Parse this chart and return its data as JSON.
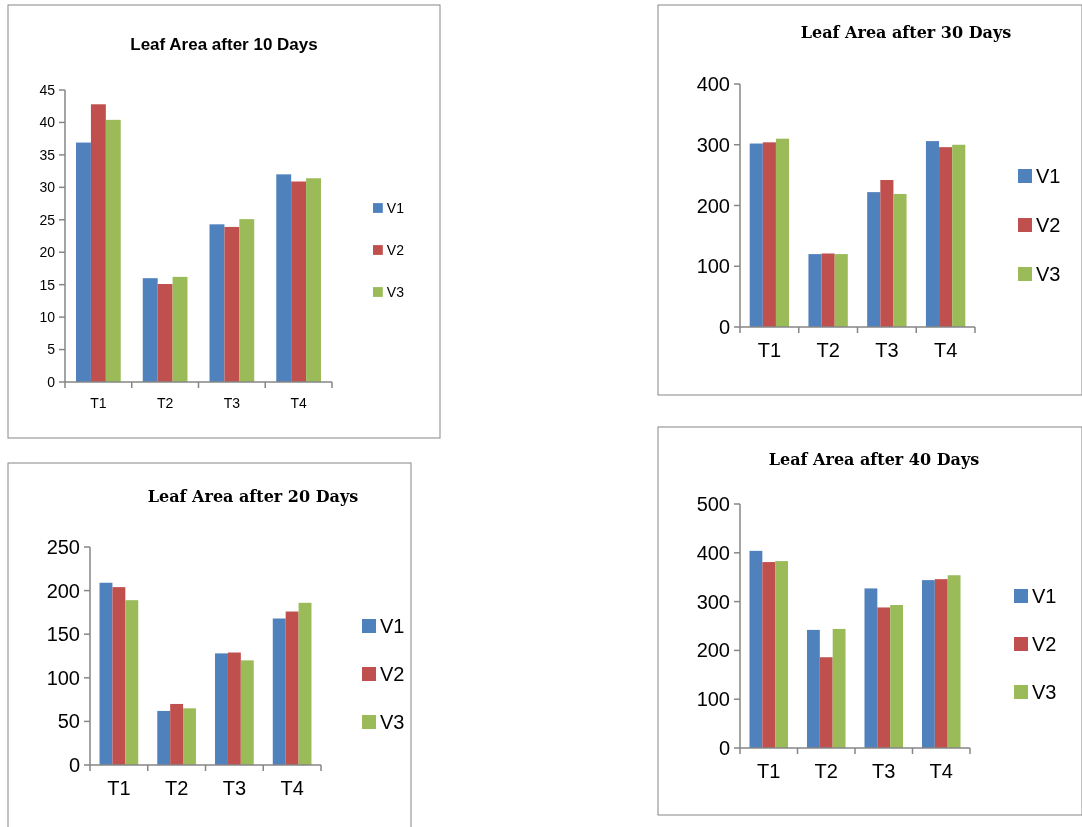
{
  "chart_data": [
    {
      "type": "bar",
      "title": "Leaf Area after 10 Days",
      "categories": [
        "T1",
        "T2",
        "T3",
        "T4"
      ],
      "ylim": [
        0,
        45
      ],
      "yticks": [
        0,
        5,
        10,
        15,
        20,
        25,
        30,
        35,
        40,
        45
      ],
      "legend": "right",
      "grid": false,
      "series": [
        {
          "name": "V1",
          "color": "#4f81bd",
          "values": [
            36.9,
            16.0,
            24.3,
            32.0
          ]
        },
        {
          "name": "V2",
          "color": "#c0504d",
          "values": [
            42.8,
            15.1,
            23.9,
            30.9
          ]
        },
        {
          "name": "V3",
          "color": "#9bbb59",
          "values": [
            40.4,
            16.2,
            25.1,
            31.4
          ]
        }
      ]
    },
    {
      "type": "bar",
      "title": "Leaf Area after 30 Days",
      "categories": [
        "T1",
        "T2",
        "T3",
        "T4"
      ],
      "ylim": [
        0,
        400
      ],
      "yticks": [
        0,
        100,
        200,
        300,
        400
      ],
      "legend": "right",
      "grid": false,
      "series": [
        {
          "name": "V1",
          "color": "#4f81bd",
          "values": [
            302,
            120,
            222,
            306
          ]
        },
        {
          "name": "V2",
          "color": "#c0504d",
          "values": [
            304,
            121,
            242,
            296
          ]
        },
        {
          "name": "V3",
          "color": "#9bbb59",
          "values": [
            310,
            120,
            219,
            300
          ]
        }
      ]
    },
    {
      "type": "bar",
      "title": "Leaf Area after 20 Days",
      "categories": [
        "T1",
        "T2",
        "T3",
        "T4"
      ],
      "ylim": [
        0,
        250
      ],
      "yticks": [
        0,
        50,
        100,
        150,
        200,
        250
      ],
      "legend": "right",
      "grid": false,
      "series": [
        {
          "name": "V1",
          "color": "#4f81bd",
          "values": [
            209,
            62,
            128,
            168
          ]
        },
        {
          "name": "V2",
          "color": "#c0504d",
          "values": [
            204,
            70,
            129,
            176
          ]
        },
        {
          "name": "V3",
          "color": "#9bbb59",
          "values": [
            189,
            65,
            120,
            186
          ]
        }
      ]
    },
    {
      "type": "bar",
      "title": "Leaf Area after 40 Days",
      "categories": [
        "T1",
        "T2",
        "T3",
        "T4"
      ],
      "ylim": [
        0,
        500
      ],
      "yticks": [
        0,
        100,
        200,
        300,
        400,
        500
      ],
      "legend": "right",
      "grid": false,
      "series": [
        {
          "name": "V1",
          "color": "#4f81bd",
          "values": [
            404,
            242,
            327,
            344
          ]
        },
        {
          "name": "V2",
          "color": "#c0504d",
          "values": [
            381,
            186,
            288,
            346
          ]
        },
        {
          "name": "V3",
          "color": "#9bbb59",
          "values": [
            383,
            244,
            293,
            354
          ]
        }
      ]
    }
  ]
}
